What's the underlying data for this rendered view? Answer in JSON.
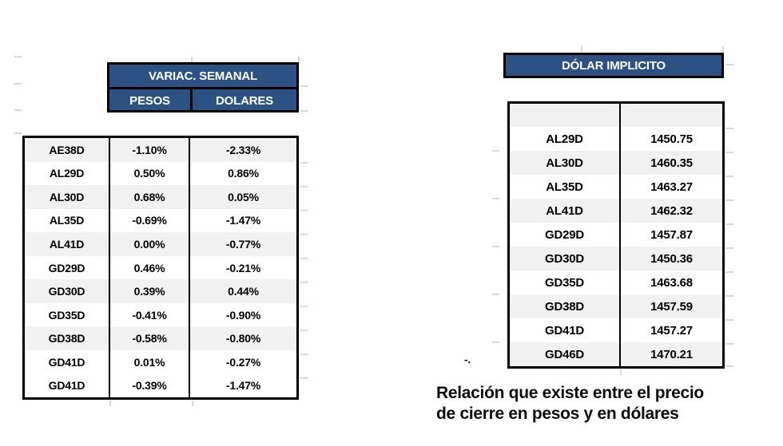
{
  "left_table": {
    "title": "VARIAC. SEMANAL",
    "columns": {
      "pesos": "PESOS",
      "dolares": "DOLARES"
    },
    "rows": [
      {
        "bond": "AE38D",
        "pesos": "-1.10%",
        "dolares": "-2.33%"
      },
      {
        "bond": "AL29D",
        "pesos": "0.50%",
        "dolares": "0.86%"
      },
      {
        "bond": "AL30D",
        "pesos": "0.68%",
        "dolares": "0.05%"
      },
      {
        "bond": "AL35D",
        "pesos": "-0.69%",
        "dolares": "-1.47%"
      },
      {
        "bond": "AL41D",
        "pesos": "0.00%",
        "dolares": "-0.77%"
      },
      {
        "bond": "GD29D",
        "pesos": "0.46%",
        "dolares": "-0.21%"
      },
      {
        "bond": "GD30D",
        "pesos": "0.39%",
        "dolares": "0.44%"
      },
      {
        "bond": "GD35D",
        "pesos": "-0.41%",
        "dolares": "-0.90%"
      },
      {
        "bond": "GD38D",
        "pesos": "-0.58%",
        "dolares": "-0.80%"
      },
      {
        "bond": "GD41D",
        "pesos": "0.01%",
        "dolares": "-0.27%"
      },
      {
        "bond": "GD41D",
        "pesos": "-0.39%",
        "dolares": "-1.47%"
      }
    ]
  },
  "right_table": {
    "title": "DÓLAR IMPLICITO",
    "rows": [
      {
        "bond": "AL29D",
        "value": "1450.75"
      },
      {
        "bond": "AL30D",
        "value": "1460.35"
      },
      {
        "bond": "AL35D",
        "value": "1463.27"
      },
      {
        "bond": "AL41D",
        "value": "1462.32"
      },
      {
        "bond": "GD29D",
        "value": "1457.87"
      },
      {
        "bond": "GD30D",
        "value": "1450.36"
      },
      {
        "bond": "GD35D",
        "value": "1463.68"
      },
      {
        "bond": "GD38D",
        "value": "1457.59"
      },
      {
        "bond": "GD41D",
        "value": "1457.27"
      },
      {
        "bond": "GD46D",
        "value": "1470.21"
      }
    ]
  },
  "caption": {
    "line1": "Relación que existe entre el precio",
    "line2": "de cierre en pesos y en dólares"
  },
  "stray_mark": "-.",
  "colors": {
    "header_bg": "#2B5283",
    "header_text": "#FFFFFF",
    "band_bg": "#F1F1F1",
    "border": "#000000"
  }
}
